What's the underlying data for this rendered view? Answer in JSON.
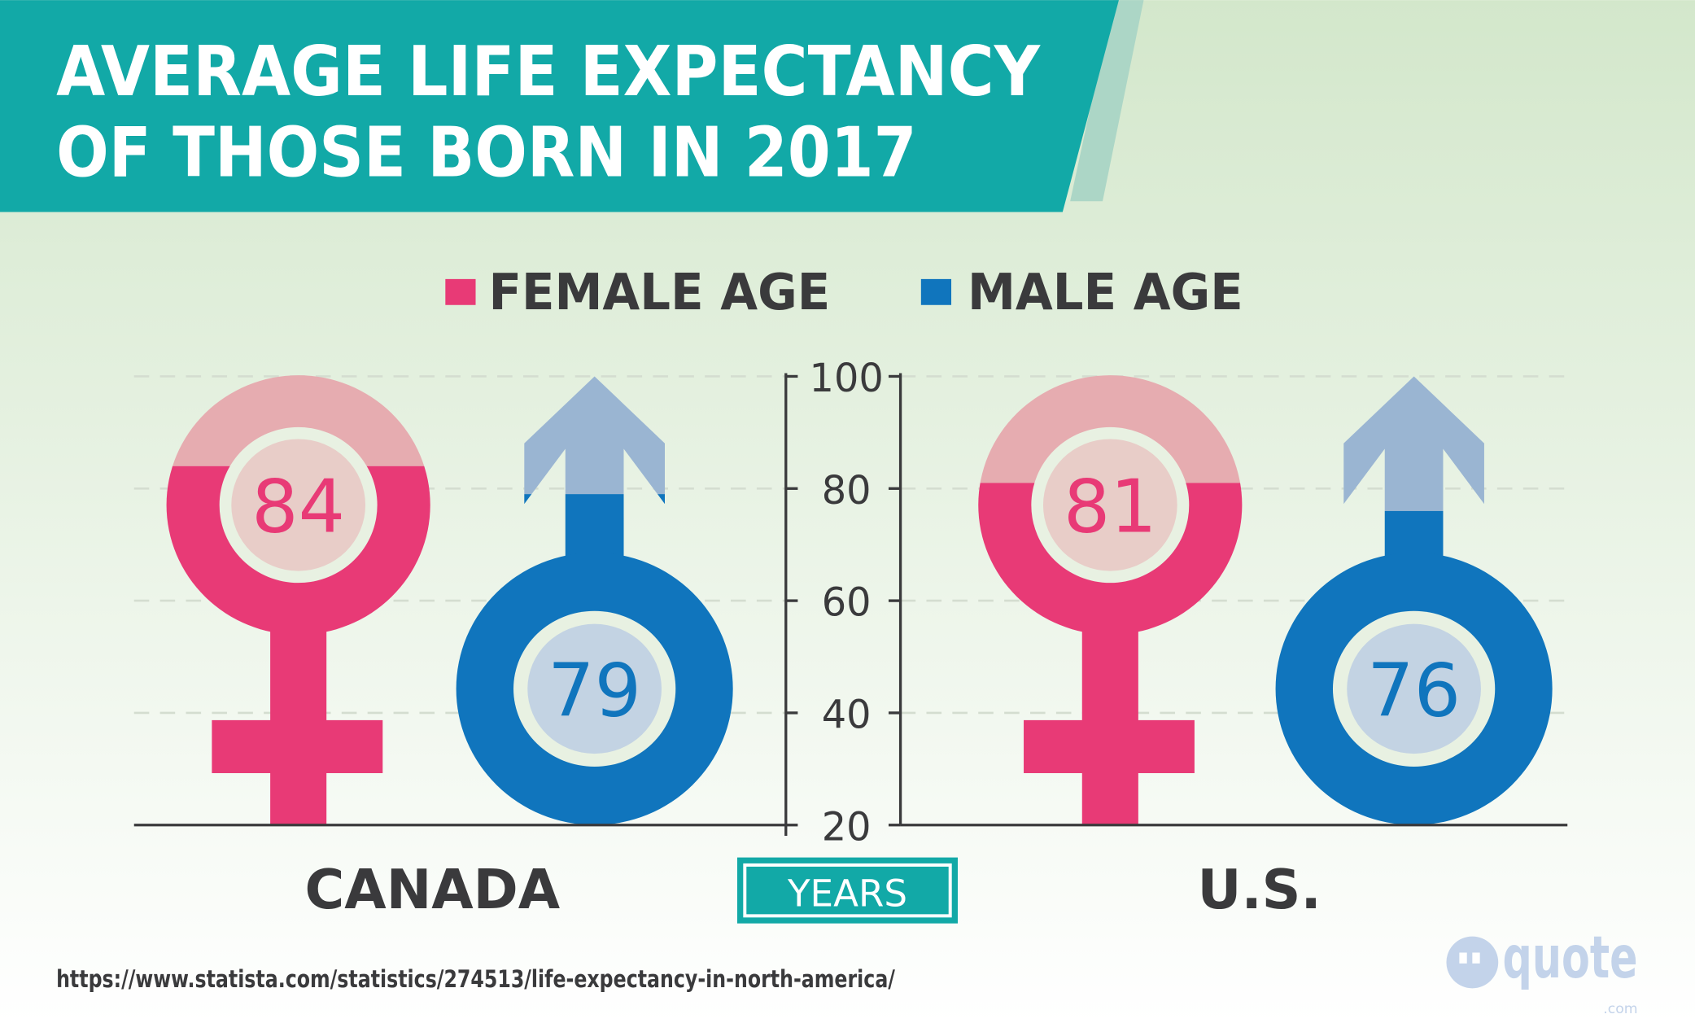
{
  "title": {
    "line1": "AVERAGE LIFE EXPECTANCY",
    "line2": "OF THOSE BORN IN 2017"
  },
  "source_url": "https://www.statista.com/statistics/274513/life-expectancy-in-north-america/",
  "logo": {
    "text": "quote",
    "suffix": ".com"
  },
  "colors": {
    "teal": "#12a9a7",
    "female": "#e83a76",
    "female_light": "#e6acb0",
    "female_disk": "#e8cdc8",
    "male": "#1075bd",
    "male_light": "#9ab5d2",
    "male_disk": "#c3d3e3",
    "text": "#3a3a3c"
  },
  "chart_data": {
    "type": "bar",
    "title": "AVERAGE LIFE EXPECTANCY OF THOSE BORN IN 2017",
    "categories": [
      "CANADA",
      "U.S."
    ],
    "series": [
      {
        "name": "FEMALE AGE",
        "values": [
          84,
          81
        ],
        "color": "#e83a76",
        "icon": "female-symbol-icon"
      },
      {
        "name": "MALE AGE",
        "values": [
          79,
          76
        ],
        "color": "#1075bd",
        "icon": "male-symbol-icon"
      }
    ],
    "ylabel": "YEARS",
    "ylim": [
      20,
      100
    ],
    "yticks": [
      "100",
      "80",
      "60",
      "40",
      "20"
    ],
    "grid": true,
    "legend": "top-center",
    "value_labels": [
      "84",
      "79",
      "81",
      "76"
    ]
  }
}
